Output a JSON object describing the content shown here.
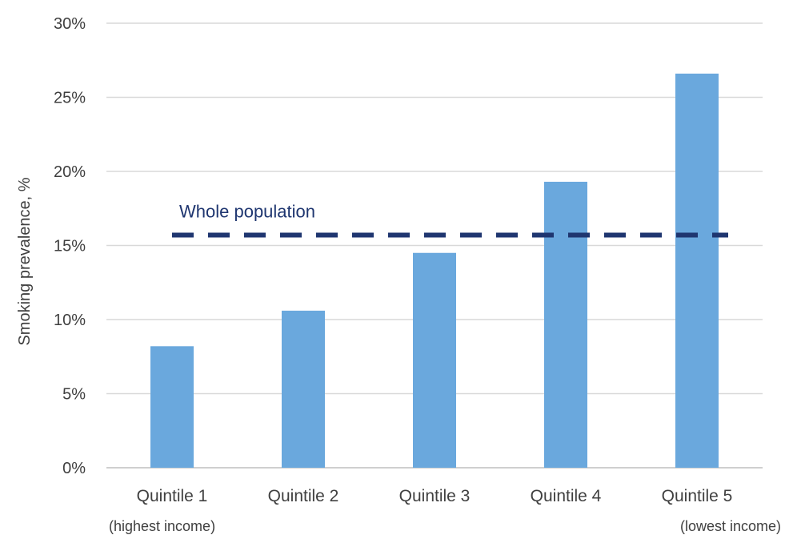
{
  "chart_data": {
    "type": "bar",
    "ylabel": "Smoking prevalence, %",
    "categories": [
      "Quintile 1",
      "Quintile 2",
      "Quintile 3",
      "Quintile 4",
      "Quintile 5"
    ],
    "category_sublabels": [
      "(highest income)",
      "",
      "",
      "",
      "(lowest income)"
    ],
    "values": [
      8.2,
      10.6,
      14.5,
      19.3,
      26.6
    ],
    "ylim": [
      0,
      30
    ],
    "yticks": [
      0,
      5,
      10,
      15,
      20,
      25,
      30
    ],
    "ytick_labels": [
      "0%",
      "5%",
      "10%",
      "15%",
      "20%",
      "25%",
      "30%"
    ],
    "grid": true,
    "reference_line": {
      "label": "Whole population",
      "value": 15.7,
      "style": "dashed"
    },
    "colors": {
      "bar": "#6aa8dd",
      "reference": "#1f3670",
      "grid": "#d9d9d9",
      "text": "#404040"
    }
  }
}
